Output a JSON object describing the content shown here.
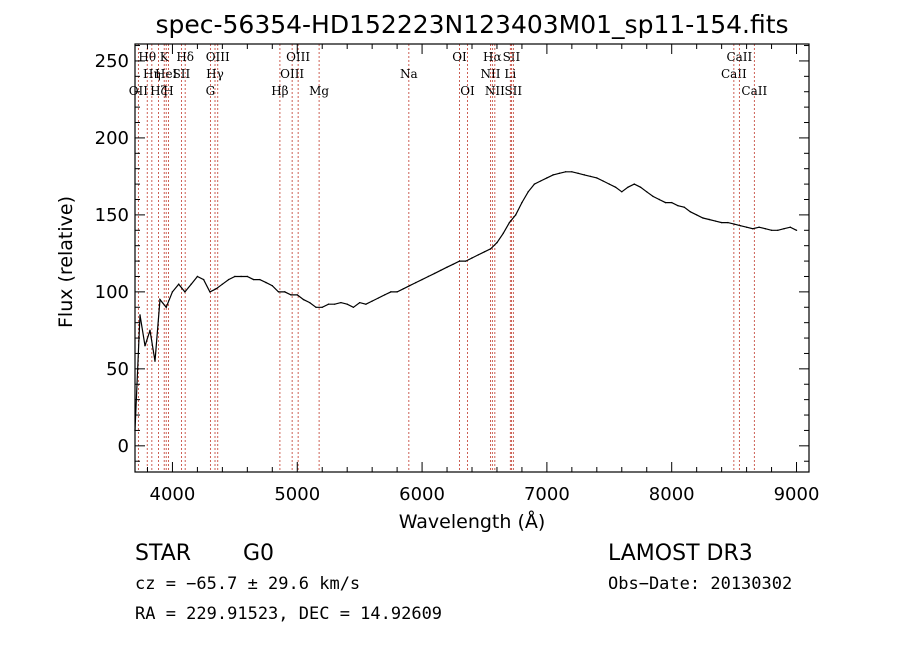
{
  "chart_data": {
    "type": "line",
    "title": "spec-56354-HD152223N123403M01_sp11-154.fits",
    "xlabel": "Wavelength (Å)",
    "ylabel": "Flux (relative)",
    "xlim": [
      3700,
      9100
    ],
    "ylim": [
      -17,
      261
    ],
    "xticks": [
      4000,
      5000,
      6000,
      7000,
      8000,
      9000
    ],
    "yticks": [
      0,
      50,
      100,
      150,
      200,
      250
    ],
    "grid": false,
    "series": [
      {
        "name": "flux",
        "x": [
          3700,
          3740,
          3780,
          3820,
          3860,
          3900,
          3950,
          4000,
          4050,
          4100,
          4150,
          4200,
          4250,
          4300,
          4350,
          4400,
          4450,
          4500,
          4550,
          4600,
          4650,
          4700,
          4750,
          4800,
          4850,
          4900,
          4950,
          5000,
          5050,
          5100,
          5150,
          5200,
          5250,
          5300,
          5350,
          5400,
          5450,
          5500,
          5550,
          5600,
          5650,
          5700,
          5750,
          5800,
          5850,
          5900,
          5950,
          6000,
          6050,
          6100,
          6150,
          6200,
          6250,
          6300,
          6350,
          6400,
          6450,
          6500,
          6550,
          6600,
          6650,
          6700,
          6750,
          6800,
          6850,
          6900,
          6950,
          7000,
          7050,
          7100,
          7150,
          7200,
          7250,
          7300,
          7350,
          7400,
          7450,
          7500,
          7550,
          7600,
          7650,
          7700,
          7750,
          7800,
          7850,
          7900,
          7950,
          8000,
          8050,
          8100,
          8150,
          8200,
          8250,
          8300,
          8350,
          8400,
          8450,
          8500,
          8550,
          8600,
          8650,
          8700,
          8750,
          8800,
          8850,
          8900,
          8950,
          9000
        ],
        "y": [
          10,
          85,
          65,
          75,
          55,
          95,
          90,
          100,
          105,
          100,
          105,
          110,
          108,
          100,
          102,
          105,
          108,
          110,
          110,
          110,
          108,
          108,
          106,
          104,
          100,
          100,
          98,
          98,
          95,
          93,
          90,
          90,
          92,
          92,
          93,
          92,
          90,
          93,
          92,
          94,
          96,
          98,
          100,
          100,
          102,
          104,
          106,
          108,
          110,
          112,
          114,
          116,
          118,
          120,
          120,
          122,
          124,
          126,
          128,
          132,
          138,
          145,
          150,
          158,
          165,
          170,
          172,
          174,
          176,
          177,
          178,
          178,
          177,
          176,
          175,
          174,
          172,
          170,
          168,
          165,
          168,
          170,
          168,
          165,
          162,
          160,
          158,
          158,
          156,
          155,
          152,
          150,
          148,
          147,
          146,
          145,
          145,
          144,
          143,
          142,
          141,
          142,
          141,
          140,
          140,
          141,
          142,
          140
        ]
      }
    ],
    "spectral_lines": [
      {
        "label": "OII",
        "x": 3727,
        "row": 3
      },
      {
        "label": "Hθ",
        "x": 3798,
        "row": 1
      },
      {
        "label": "Hη",
        "x": 3835,
        "row": 2
      },
      {
        "label": "Hζ",
        "x": 3889,
        "row": 3
      },
      {
        "label": "K",
        "x": 3934,
        "row": 1
      },
      {
        "label": "H",
        "x": 3968,
        "row": 3
      },
      {
        "label": "HeI",
        "x": 3950,
        "row": 2
      },
      {
        "label": "SII",
        "x": 4072,
        "row": 2
      },
      {
        "label": "Hδ",
        "x": 4102,
        "row": 1
      },
      {
        "label": "G",
        "x": 4304,
        "row": 3
      },
      {
        "label": "Hγ",
        "x": 4341,
        "row": 2
      },
      {
        "label": "OIII",
        "x": 4363,
        "row": 1
      },
      {
        "label": "Hβ",
        "x": 4861,
        "row": 3
      },
      {
        "label": "OIII",
        "x": 4959,
        "row": 2
      },
      {
        "label": "OIII",
        "x": 5007,
        "row": 1
      },
      {
        "label": "Mg",
        "x": 5175,
        "row": 3
      },
      {
        "label": "Na",
        "x": 5894,
        "row": 2
      },
      {
        "label": "OI",
        "x": 6300,
        "row": 1
      },
      {
        "label": "OI",
        "x": 6364,
        "row": 3
      },
      {
        "label": "NII",
        "x": 6548,
        "row": 2
      },
      {
        "label": "Hα",
        "x": 6563,
        "row": 1
      },
      {
        "label": "NII",
        "x": 6583,
        "row": 3
      },
      {
        "label": "Li",
        "x": 6707,
        "row": 2
      },
      {
        "label": "SII",
        "x": 6716,
        "row": 1
      },
      {
        "label": "SII",
        "x": 6731,
        "row": 3
      },
      {
        "label": "CaII",
        "x": 8498,
        "row": 2
      },
      {
        "label": "CaII",
        "x": 8542,
        "row": 1
      },
      {
        "label": "CaII",
        "x": 8662,
        "row": 3
      }
    ]
  },
  "info": {
    "class": "STAR",
    "subclass": "G0",
    "survey": "LAMOST DR3",
    "cz": "cz = −65.7 ± 29.6 km/s",
    "obs_date": "Obs−Date: 20130302",
    "radec": "RA = 229.91523, DEC =  14.92609"
  }
}
